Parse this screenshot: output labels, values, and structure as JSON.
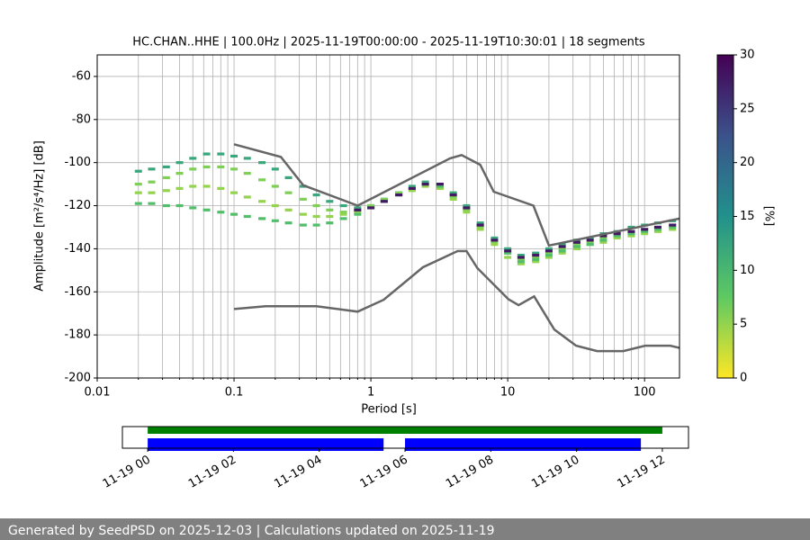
{
  "chart_data": [
    {
      "type": "ppsd",
      "title": "HC.CHAN..HHE | 100.0Hz | 2025-11-19T00:00:00 - 2025-11-19T10:30:01 | 18 segments",
      "xlabel": "Period [s]",
      "ylabel": "Amplitude [m²/s⁴/Hz] [dB]",
      "xscale": "log",
      "grid": true,
      "xlim": [
        0.01,
        180
      ],
      "ylim": [
        -200,
        -50
      ],
      "xticks": [
        0.01,
        0.1,
        1,
        10,
        100
      ],
      "xminorticks": [
        0.02,
        0.03,
        0.04,
        0.05,
        0.06,
        0.07,
        0.08,
        0.09,
        0.2,
        0.3,
        0.4,
        0.5,
        0.6,
        0.7,
        0.8,
        0.9,
        2,
        3,
        4,
        5,
        6,
        7,
        8,
        9,
        20,
        30,
        40,
        50,
        60,
        70,
        80,
        90
      ],
      "yticks": [
        -60,
        -80,
        -100,
        -120,
        -140,
        -160,
        -180,
        -200
      ],
      "colorbar": {
        "label": "[%]",
        "lim": [
          0,
          30
        ],
        "ticks": [
          0,
          5,
          10,
          15,
          20,
          25,
          30
        ],
        "colormap": [
          "#fde725",
          "#5ec962",
          "#21918c",
          "#3b528b",
          "#440154"
        ]
      },
      "periods": [
        0.02,
        0.025,
        0.032,
        0.04,
        0.05,
        0.063,
        0.08,
        0.1,
        0.125,
        0.16,
        0.2,
        0.25,
        0.32,
        0.4,
        0.5,
        0.63,
        0.8,
        1,
        1.25,
        1.6,
        2,
        2.5,
        3.2,
        4,
        5,
        6.3,
        8,
        10,
        12.5,
        16,
        20,
        25,
        32,
        40,
        50,
        63,
        80,
        100,
        125,
        160
      ],
      "density": [
        {
          "percent": 12,
          "values": [
            -104,
            -103,
            -102,
            -100,
            -98,
            -96,
            -96,
            -97,
            -98,
            -100,
            -103,
            -107,
            -111,
            -115,
            -118,
            -120,
            -121,
            -120,
            -117,
            -114,
            -111,
            -109,
            -110,
            -114,
            -120,
            -128,
            -135,
            -140,
            -143,
            -142,
            -140,
            -138,
            -136,
            -135,
            -133,
            -132,
            -130,
            -129,
            -128,
            -127
          ]
        },
        {
          "percent": 6,
          "values": [
            -110,
            -109,
            -107,
            -105,
            -103,
            -102,
            -102,
            -103,
            -105,
            -108,
            -111,
            -114,
            -117,
            -120,
            -122,
            -123,
            -122,
            -120,
            -117,
            -114,
            -112,
            -110,
            -111,
            -116,
            -122,
            -130,
            -137,
            -142,
            -145,
            -144,
            -142,
            -140,
            -138,
            -137,
            -135,
            -134,
            -132,
            -131,
            -130,
            -129
          ]
        },
        {
          "percent": 5,
          "values": [
            -114,
            -114,
            -113,
            -112,
            -111,
            -111,
            -112,
            -114,
            -116,
            -118,
            -120,
            -122,
            -124,
            -125,
            -125,
            -124,
            -123,
            -121,
            -118,
            -115,
            -113,
            -111,
            -112,
            -117,
            -123,
            -131,
            -138,
            -144,
            -147,
            -146,
            -144,
            -142,
            -140,
            -138,
            -137,
            -135,
            -134,
            -133,
            -132,
            -131
          ]
        },
        {
          "percent": 9,
          "values": [
            -119,
            -119,
            -120,
            -120,
            -121,
            -122,
            -123,
            -124,
            -125,
            -126,
            -127,
            -128,
            -129,
            -129,
            -128,
            -126,
            -124,
            -121,
            -118,
            -115,
            -112,
            -110,
            -111,
            -115,
            -121,
            -129,
            -136,
            -142,
            -146,
            -145,
            -143,
            -141,
            -139,
            -138,
            -136,
            -134,
            -133,
            -132,
            -131,
            -130
          ]
        },
        {
          "percent": 28,
          "values": [
            null,
            null,
            null,
            null,
            null,
            null,
            null,
            null,
            null,
            null,
            null,
            null,
            null,
            null,
            null,
            null,
            -122,
            -121,
            -118,
            -115,
            -112,
            -110,
            -110,
            -115,
            -121,
            -129,
            -136,
            -141,
            -144,
            -143,
            -141,
            -139,
            -137,
            -136,
            -134,
            -133,
            -132,
            -131,
            -130,
            -129
          ]
        }
      ],
      "series": [
        {
          "color": "#666666",
          "x": [
            0.1,
            0.22,
            0.32,
            0.8,
            3.8,
            4.6,
            6.3,
            7.9,
            15.4,
            20,
            180
          ],
          "values": [
            -91.5,
            -97.4,
            -110.5,
            -120,
            -98,
            -96.5,
            -101,
            -113.5,
            -120,
            -138.5,
            -126
          ]
        },
        {
          "color": "#666666",
          "x": [
            0.1,
            0.17,
            0.4,
            0.8,
            1.24,
            2.4,
            4.3,
            5,
            6,
            10.1,
            12,
            15.6,
            21.9,
            31.6,
            45,
            70,
            101,
            154,
            180
          ],
          "values": [
            -168,
            -166.7,
            -166.7,
            -169.2,
            -163.7,
            -148.6,
            -141.1,
            -141.1,
            -149,
            -163.4,
            -166.2,
            -162.1,
            -177.5,
            -185,
            -187.5,
            -187.5,
            -185,
            -185,
            -186
          ]
        }
      ]
    },
    {
      "type": "timeline",
      "xlim": [
        -0.59,
        12.61
      ],
      "xticks": [
        {
          "value": 0,
          "label": "11-19 00"
        },
        {
          "value": 2,
          "label": "11-19 02"
        },
        {
          "value": 4,
          "label": "11-19 04"
        },
        {
          "value": 6,
          "label": "11-19 06"
        },
        {
          "value": 8,
          "label": "11-19 08"
        },
        {
          "value": 10,
          "label": "11-19 10"
        },
        {
          "value": 12,
          "label": "11-19 12"
        }
      ],
      "series": [
        {
          "color": "#008000",
          "spans": [
            [
              0,
              12
            ]
          ]
        },
        {
          "color": "#0000ff",
          "spans": [
            [
              0,
              5.5
            ],
            [
              6,
              11.5
            ]
          ]
        }
      ]
    }
  ],
  "footer": "Generated by SeedPSD on 2025-12-03 | Calculations updated on 2025-11-19"
}
